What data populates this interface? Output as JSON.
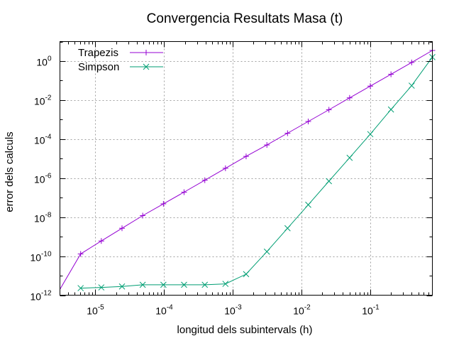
{
  "chart_data": {
    "type": "line",
    "title": "Convergencia Resultats Masa (t)",
    "xlabel": "longitud dels subintervals (h)",
    "ylabel": "error dels calculs",
    "xscale": "log",
    "yscale": "log",
    "xlim": [
      3.05e-06,
      0.8
    ],
    "ylim": [
      1e-12,
      10
    ],
    "grid": true,
    "legend_position": "top-left",
    "x_ticks": [
      {
        "value": 1e-05,
        "base": "10",
        "exp": "-5"
      },
      {
        "value": 0.0001,
        "base": "10",
        "exp": "-4"
      },
      {
        "value": 0.001,
        "base": "10",
        "exp": "-3"
      },
      {
        "value": 0.01,
        "base": "10",
        "exp": "-2"
      },
      {
        "value": 0.1,
        "base": "10",
        "exp": "-1"
      }
    ],
    "y_ticks": [
      {
        "value": 1,
        "base": "10",
        "exp": "0"
      },
      {
        "value": 0.01,
        "base": "10",
        "exp": "-2"
      },
      {
        "value": 0.0001,
        "base": "10",
        "exp": "-4"
      },
      {
        "value": 1e-06,
        "base": "10",
        "exp": "-6"
      },
      {
        "value": 1e-08,
        "base": "10",
        "exp": "-8"
      },
      {
        "value": 1e-10,
        "base": "10",
        "exp": "-10"
      },
      {
        "value": 1e-12,
        "base": "10",
        "exp": "-12"
      }
    ],
    "series": [
      {
        "name": "Trapezis",
        "color": "#9400d3",
        "marker": "plus",
        "x": [
          3.05e-06,
          6.1e-06,
          1.22e-05,
          2.44e-05,
          4.88e-05,
          9.77e-05,
          0.000195,
          0.000391,
          0.000781,
          0.00156,
          0.00313,
          0.00625,
          0.0125,
          0.025,
          0.05,
          0.1,
          0.2,
          0.4,
          0.8
        ],
        "y": [
          2e-12,
          1.3e-10,
          6e-10,
          2.7e-09,
          1.2e-08,
          4.8e-08,
          1.9e-07,
          7.8e-07,
          3.2e-06,
          1.3e-05,
          5e-05,
          0.0002,
          0.0008,
          0.0032,
          0.013,
          0.052,
          0.21,
          0.85,
          3.5
        ],
        "marker_start": 1
      },
      {
        "name": "Simpson",
        "color": "#009e73",
        "marker": "cross",
        "x": [
          6.1e-06,
          1.22e-05,
          2.44e-05,
          4.88e-05,
          9.77e-05,
          0.000195,
          0.000391,
          0.000781,
          0.00156,
          0.00313,
          0.00625,
          0.0125,
          0.025,
          0.05,
          0.1,
          0.2,
          0.4,
          0.8
        ],
        "y": [
          2.3e-12,
          2.5e-12,
          2.8e-12,
          3.4e-12,
          3.4e-12,
          3.4e-12,
          3.4e-12,
          3.8e-12,
          1.2e-11,
          1.7e-10,
          2.7e-09,
          4.3e-08,
          7e-07,
          1.1e-05,
          0.00018,
          0.0033,
          0.055,
          1.6
        ],
        "marker_start": 0
      }
    ]
  }
}
